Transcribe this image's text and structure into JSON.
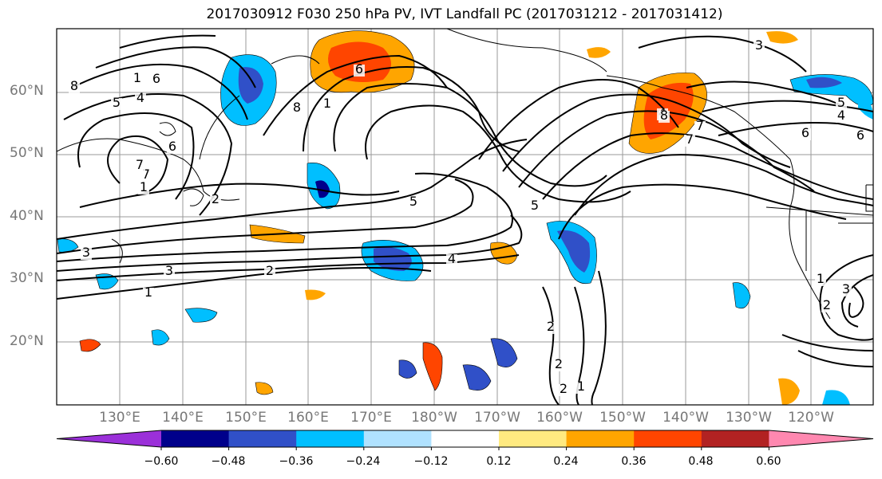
{
  "title": "2017030912 F030 250 hPa PV, IVT Landfall PC (2017031212 - 2017031412)",
  "lat_labels": [
    "60°N",
    "50°N",
    "40°N",
    "30°N",
    "20°N"
  ],
  "lon_labels": [
    "130°E",
    "140°E",
    "150°E",
    "160°E",
    "170°E",
    "180°W",
    "170°W",
    "160°W",
    "150°W",
    "140°W",
    "130°W",
    "120°W"
  ],
  "colorbar": {
    "colors": [
      "#9b30d9",
      "#00008b",
      "#3050c8",
      "#00bfff",
      "#b0e2ff",
      "#ffffff",
      "#ffea80",
      "#ffa500",
      "#ff4500",
      "#b22222",
      "#ff88b0"
    ],
    "ticks": [
      "−0.60",
      "−0.48",
      "−0.36",
      "−0.24",
      "−0.12",
      "0.12",
      "0.24",
      "0.36",
      "0.48",
      "0.60"
    ]
  },
  "contour_labels": [
    "8",
    "6",
    "1",
    "4",
    "5",
    "6",
    "1",
    "7",
    "7",
    "8",
    "1",
    "6",
    "5",
    "2",
    "3",
    "2",
    "1",
    "4",
    "5",
    "4",
    "7",
    "8",
    "7",
    "6",
    "5",
    "4",
    "3",
    "6",
    "1",
    "2",
    "3",
    "2",
    "2",
    "1",
    "2",
    "3"
  ],
  "colors": {
    "positive": "#ffa500",
    "strong_positive": "#ff4500",
    "negative": "#00bfff",
    "strong_negative": "#3050c8"
  }
}
